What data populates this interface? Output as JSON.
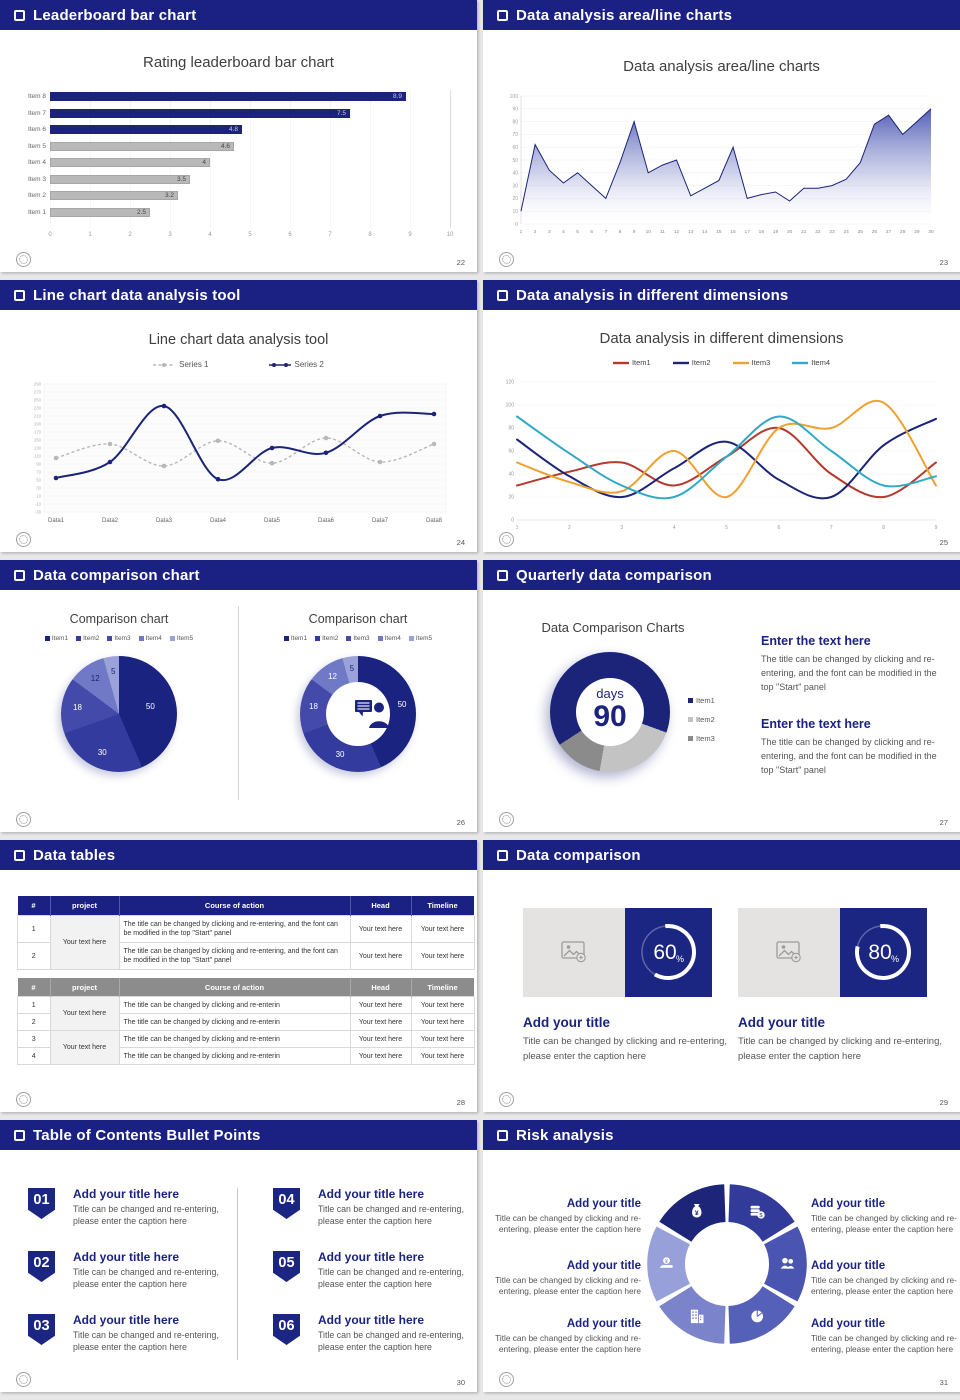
{
  "page": {
    "background": "#e8e8e8",
    "slide_background": "#ffffff",
    "header_background": "#1a2183",
    "header_text_color": "#ffffff",
    "navy": "#1b2478",
    "heading_navy": "#1b2380",
    "gray_bar": "#b9b9b9",
    "body_text_gray": "#555555"
  },
  "slides": [
    {
      "id": "leaderboard-bar-chart",
      "type": "barLeaderboard",
      "header": "Leaderboard bar chart",
      "page_no": "22",
      "chart_data": {
        "type": "bar",
        "orientation": "horizontal",
        "title": "Rating leaderboard bar chart",
        "categories": [
          "Item 1",
          "Item 2",
          "Item 3",
          "Item 4",
          "Item 5",
          "Item 6",
          "Item 7",
          "Item 8"
        ],
        "values": [
          2.5,
          3.2,
          3.5,
          4,
          4.6,
          4.8,
          7.5,
          8.9
        ],
        "value_labels": [
          "2.5",
          "3.2",
          "3.5",
          "4",
          "4.6",
          "4.8",
          "7.5",
          "8.9"
        ],
        "highlight_from_index": 5,
        "highlight_color": "#1b2478",
        "bar_color": "#b9b9b9",
        "xlim": [
          0,
          10
        ],
        "xticks": [
          0,
          1,
          2,
          3,
          4,
          5,
          6,
          7,
          8,
          9,
          10
        ],
        "grid": true,
        "legend_position": "none"
      }
    },
    {
      "id": "area-line-charts",
      "type": "area",
      "header": "Data analysis area/line charts",
      "page_no": "23",
      "chart_data": {
        "type": "area",
        "title": "Data analysis area/line charts",
        "x": [
          1,
          2,
          3,
          4,
          5,
          6,
          7,
          8,
          9,
          10,
          11,
          12,
          13,
          14,
          15,
          16,
          17,
          18,
          19,
          20,
          21,
          22,
          23,
          24,
          25,
          26,
          27,
          28,
          29,
          30
        ],
        "values": [
          10,
          62,
          42,
          32,
          40,
          30,
          20,
          48,
          80,
          40,
          46,
          50,
          22,
          28,
          34,
          60,
          20,
          23,
          25,
          18,
          28,
          28,
          30,
          35,
          48,
          78,
          85,
          70,
          80,
          90
        ],
        "ylim": [
          0,
          100
        ],
        "yticks": [
          0,
          10,
          20,
          30,
          40,
          50,
          60,
          70,
          80,
          90,
          100
        ],
        "line_color": "#1b2478",
        "fill_color": "#4a55b2",
        "grid": true,
        "legend_position": "none"
      }
    },
    {
      "id": "line-chart-tool",
      "type": "twoLine",
      "header": "Line chart data analysis tool",
      "page_no": "24",
      "chart_data": {
        "type": "line",
        "title": "Line chart data analysis tool",
        "categories": [
          "Data1",
          "Data2",
          "Data3",
          "Data4",
          "Data5",
          "Data6",
          "Data7",
          "Data8"
        ],
        "series": [
          {
            "name": "Series 1",
            "color": "#b8b8b8",
            "style": "dashed",
            "values": [
              105,
              140,
              85,
              148,
              92,
              155,
              95,
              140
            ]
          },
          {
            "name": "Series 2",
            "color": "#1b2478",
            "style": "solid",
            "values": [
              55,
              95,
              235,
              52,
              130,
              118,
              210,
              215
            ]
          }
        ],
        "ylim": [
          -30,
          290
        ],
        "ytick_step": 20,
        "grid": true,
        "legend_position": "top"
      }
    },
    {
      "id": "different-dimensions",
      "type": "multiLine",
      "header": "Data analysis in different dimensions",
      "page_no": "25",
      "chart_data": {
        "type": "line",
        "title": "Data analysis in different dimensions",
        "x": [
          1,
          2,
          3,
          4,
          5,
          6,
          7,
          8,
          9
        ],
        "series": [
          {
            "name": "Item1",
            "color": "#b5392c",
            "values": [
              30,
              42,
              50,
              30,
              55,
              80,
              40,
              20,
              50
            ]
          },
          {
            "name": "Item2",
            "color": "#1b2478",
            "values": [
              70,
              38,
              20,
              45,
              68,
              35,
              20,
              65,
              88
            ]
          },
          {
            "name": "Item3",
            "color": "#efa12f",
            "values": [
              50,
              33,
              25,
              60,
              20,
              80,
              80,
              102,
              30
            ]
          },
          {
            "name": "Item4",
            "color": "#2fa9c6",
            "values": [
              90,
              58,
              30,
              20,
              55,
              90,
              60,
              30,
              38
            ]
          }
        ],
        "ylim": [
          0,
          120
        ],
        "yticks": [
          0,
          20,
          40,
          60,
          80,
          100,
          120
        ],
        "grid": true,
        "legend_position": "top"
      }
    },
    {
      "id": "data-comparison-chart",
      "type": "pies",
      "header": "Data comparison chart",
      "page_no": "26",
      "charts": [
        {
          "title": "Comparison chart",
          "variant": "pie"
        },
        {
          "title": "Comparison chart",
          "variant": "donut",
          "center_icon": "presenter-icon"
        }
      ],
      "chart_data": {
        "type": "pie",
        "legend": [
          "Item1",
          "Item2",
          "Item3",
          "Item4",
          "Item5"
        ],
        "values": [
          50,
          30,
          18,
          12,
          5
        ],
        "value_labels": [
          "50",
          "30",
          "18",
          "12",
          "5"
        ],
        "colors": [
          "#1b2380",
          "#343b9e",
          "#434aa9",
          "#7079c5",
          "#9ba2d9"
        ],
        "legend_position": "top"
      }
    },
    {
      "id": "quarterly-data-comparison",
      "type": "quarterly",
      "header": "Quarterly data comparison",
      "page_no": "27",
      "chart_data": {
        "type": "donut",
        "title": "Data Comparison Charts",
        "center_label": "days",
        "center_value": "90",
        "legend": [
          {
            "name": "Item1",
            "color": "#1b2478"
          },
          {
            "name": "Item2",
            "color": "#c3c3c3"
          },
          {
            "name": "Item3",
            "color": "#8b8b8b"
          }
        ],
        "segments_deg": [
          [
            0,
            110,
            "#1b2478"
          ],
          [
            110,
            190,
            "#c3c3c3"
          ],
          [
            190,
            237,
            "#8b8b8b"
          ],
          [
            237,
            360,
            "#1b2478"
          ]
        ],
        "legend_position": "right"
      },
      "text_blocks": [
        {
          "heading": "Enter the text here",
          "body": "The title can be changed by clicking and re-entering, and the font can be modified in the top \"Start\" panel"
        },
        {
          "heading": "Enter the text here",
          "body": "The title can be changed by clicking and re-entering, and the font can be modified in the top \"Start\" panel"
        }
      ]
    },
    {
      "id": "data-tables",
      "type": "tables",
      "header": "Data tables",
      "page_no": "28",
      "tables": [
        {
          "theme": "navy",
          "header_bg": "#1a2183",
          "columns": [
            "#",
            "project",
            "Course of action",
            "Head",
            "Timeline"
          ],
          "project_text": "Your text here",
          "rows": [
            [
              "1",
              "The title can be changed by clicking and re-entering, and the font can be modified in the top \"Start\" panel",
              "Your text here",
              "Your text here"
            ],
            [
              "2",
              "The title can be changed by clicking and re-entering, and the font can be modified in the top \"Start\" panel",
              "Your text here",
              "Your text here"
            ]
          ]
        },
        {
          "theme": "gray",
          "header_bg": "#8c8c8c",
          "columns": [
            "#",
            "project",
            "Course of action",
            "Head",
            "Timeline"
          ],
          "project_text": "Your text here",
          "rows": [
            [
              "1",
              "The title can be changed by clicking and re-enterin",
              "Your text here",
              "Your text here"
            ],
            [
              "2",
              "The title can be changed by clicking and re-enterin",
              "Your text here",
              "Your text here"
            ],
            [
              "3",
              "The title can be changed by clicking and re-enterin",
              "Your text here",
              "Your text here"
            ],
            [
              "4",
              "The title can be changed by clicking and re-enterin",
              "Your text here",
              "Your text here"
            ]
          ]
        }
      ]
    },
    {
      "id": "data-comparison-progress",
      "type": "progressCards",
      "header": "Data comparison",
      "page_no": "29",
      "cards": [
        {
          "percent": 60,
          "percent_label": "60",
          "percent_suffix": "%",
          "title": "Add your title",
          "caption": "Title can be changed by clicking and re-entering, please enter the caption here"
        },
        {
          "percent": 80,
          "percent_label": "80",
          "percent_suffix": "%",
          "title": "Add your title",
          "caption": "Title can be changed by clicking and re-entering, please enter the caption here"
        }
      ]
    },
    {
      "id": "table-of-contents",
      "type": "toc",
      "header": "Table of Contents Bullet Points",
      "page_no": "30",
      "items": [
        {
          "num": "01",
          "title": "Add your title here",
          "caption": "Title can be changed and re-entering, please enter the caption here"
        },
        {
          "num": "02",
          "title": "Add your title here",
          "caption": "Title can be changed and re-entering, please enter the caption here"
        },
        {
          "num": "03",
          "title": "Add your title here",
          "caption": "Title can be changed and re-entering, please enter the caption here"
        },
        {
          "num": "04",
          "title": "Add your title here",
          "caption": "Title can be changed and re-entering, please enter the caption here"
        },
        {
          "num": "05",
          "title": "Add your title here",
          "caption": "Title can be changed and re-entering, please enter the caption here"
        },
        {
          "num": "06",
          "title": "Add your title here",
          "caption": "Title can be changed and re-entering, please enter the caption here"
        }
      ]
    },
    {
      "id": "risk-analysis",
      "type": "risk",
      "header": "Risk analysis",
      "page_no": "31",
      "wheel": {
        "segment_colors": [
          "#1c2578",
          "#323b99",
          "#4a55b2",
          "#5560b8",
          "#7b84cb",
          "#98a0da"
        ],
        "icons": [
          "money-bag-icon",
          "coins-icon",
          "people-icon",
          "pie-chart-icon",
          "building-icon",
          "hand-coin-icon"
        ]
      },
      "items": [
        {
          "heading": "Add your title",
          "body": "Title can be changed by clicking and re-entering, please enter the caption here",
          "side": "left"
        },
        {
          "heading": "Add your title",
          "body": "Title can be changed by clicking and re-entering, please enter the caption here",
          "side": "left"
        },
        {
          "heading": "Add your title",
          "body": "Title can be changed by clicking and re-entering, please enter the caption here",
          "side": "left"
        },
        {
          "heading": "Add your title",
          "body": "Title can be changed by clicking and re-entering, please enter the caption here",
          "side": "right"
        },
        {
          "heading": "Add your title",
          "body": "Title can be changed by clicking and re-entering, please enter the caption here",
          "side": "right"
        },
        {
          "heading": "Add your title",
          "body": "Title can be changed by clicking and re-entering, please enter the caption here",
          "side": "right"
        }
      ]
    }
  ]
}
